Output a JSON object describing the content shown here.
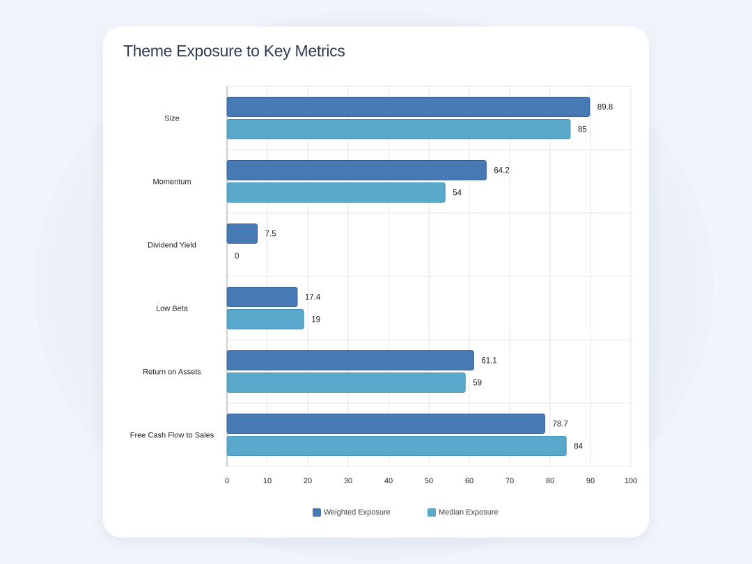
{
  "colors": {
    "weighted": "#4779b5",
    "median": "#5aa8cc",
    "weighted_border": "#355f95",
    "median_border": "#438fb5",
    "grid": "#e4e6ea",
    "axis": "#9aa0a8"
  },
  "chart_data": {
    "type": "bar",
    "orientation": "horizontal",
    "title": "Theme Exposure to Key Metrics",
    "categories": [
      "Size",
      "Momentum",
      "Dividend Yield",
      "Low Beta",
      "Return on Assets",
      "Free Cash Flow to Sales"
    ],
    "series": [
      {
        "name": "Weighted Exposure",
        "values": [
          89.8,
          64.2,
          7.5,
          17.4,
          61.1,
          78.7
        ]
      },
      {
        "name": "Median Exposure",
        "values": [
          85,
          54,
          0,
          19,
          59,
          84
        ]
      }
    ],
    "value_labels": [
      [
        "89.8",
        "64.2",
        "7.5",
        "17.4",
        "61.1",
        "78.7"
      ],
      [
        "85",
        "54",
        "0",
        "19",
        "59",
        "84"
      ]
    ],
    "xlim": [
      0,
      100
    ],
    "xticks": [
      0,
      10,
      20,
      30,
      40,
      50,
      60,
      70,
      80,
      90,
      100
    ],
    "grid": true,
    "legend_position": "bottom"
  }
}
